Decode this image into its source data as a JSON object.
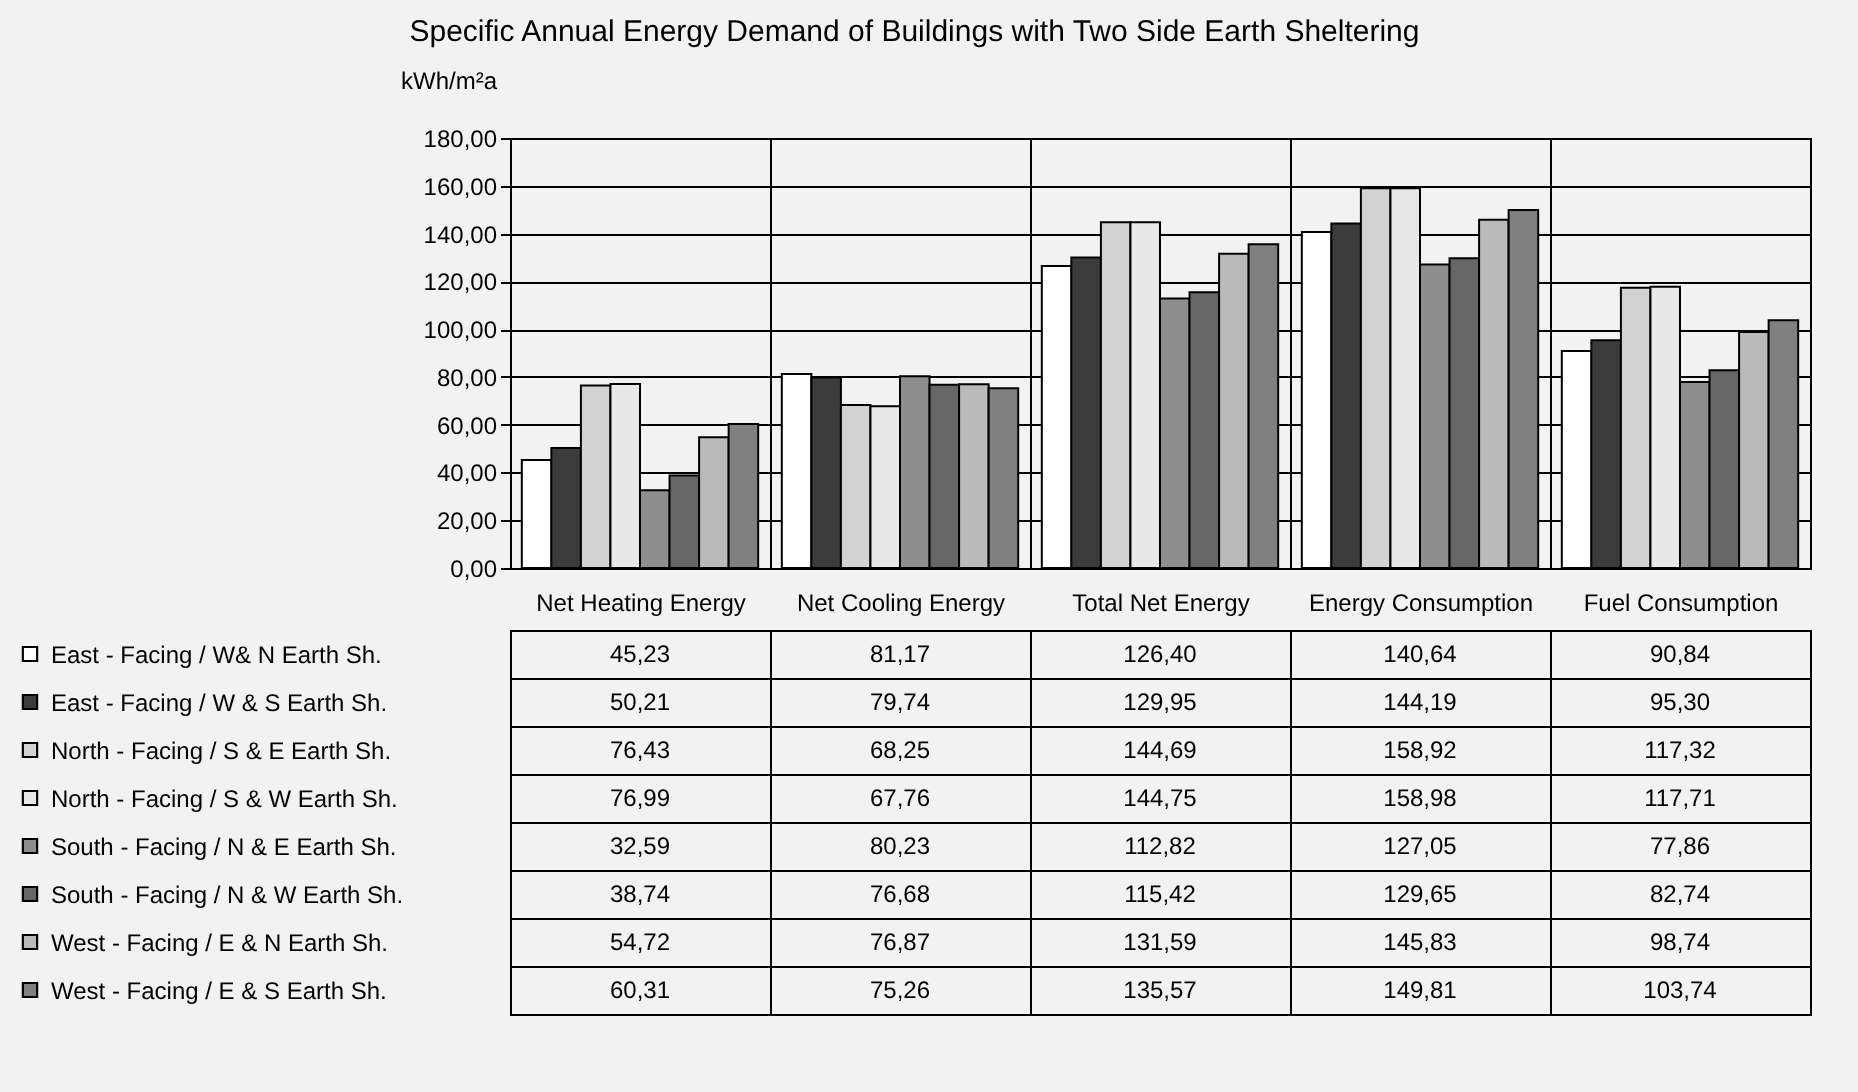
{
  "chart_data": {
    "type": "bar",
    "title": "Specific Annual Energy Demand of Buildings with Two Side Earth Sheltering",
    "ylabel": "kWh/m²a",
    "categories": [
      "Net Heating Energy",
      "Net Cooling Energy",
      "Total Net Energy",
      "Energy Consumption",
      "Fuel Consumption"
    ],
    "series": [
      {
        "name": "East - Facing / W& N Earth Sh.",
        "color": "#ffffff",
        "values": [
          45.23,
          81.17,
          126.4,
          140.64,
          90.84
        ],
        "value_labels": [
          "45,23",
          "81,17",
          "126,40",
          "140,64",
          "90,84"
        ]
      },
      {
        "name": "East - Facing / W & S Earth Sh.",
        "color": "#3c3c3c",
        "values": [
          50.21,
          79.74,
          129.95,
          144.19,
          95.3
        ],
        "value_labels": [
          "50,21",
          "79,74",
          "129,95",
          "144,19",
          "95,30"
        ]
      },
      {
        "name": "North - Facing / S & E Earth Sh.",
        "color": "#d2d2d2",
        "values": [
          76.43,
          68.25,
          144.69,
          158.92,
          117.32
        ],
        "value_labels": [
          "76,43",
          "68,25",
          "144,69",
          "158,92",
          "117,32"
        ]
      },
      {
        "name": "North - Facing / S & W Earth Sh.",
        "color": "#e8e8e8",
        "values": [
          76.99,
          67.76,
          144.75,
          158.98,
          117.71
        ],
        "value_labels": [
          "76,99",
          "67,76",
          "144,75",
          "158,98",
          "117,71"
        ]
      },
      {
        "name": "South - Facing / N & E Earth Sh.",
        "color": "#8e8e8e",
        "values": [
          32.59,
          80.23,
          112.82,
          127.05,
          77.86
        ],
        "value_labels": [
          "32,59",
          "80,23",
          "112,82",
          "127,05",
          "77,86"
        ]
      },
      {
        "name": "South - Facing / N & W Earth Sh.",
        "color": "#666666",
        "values": [
          38.74,
          76.68,
          115.42,
          129.65,
          82.74
        ],
        "value_labels": [
          "38,74",
          "76,68",
          "115,42",
          "129,65",
          "82,74"
        ]
      },
      {
        "name": "West - Facing / E & N Earth Sh.",
        "color": "#bababa",
        "values": [
          54.72,
          76.87,
          131.59,
          145.83,
          98.74
        ],
        "value_labels": [
          "54,72",
          "76,87",
          "131,59",
          "145,83",
          "98,74"
        ]
      },
      {
        "name": "West - Facing / E & S Earth Sh.",
        "color": "#808080",
        "values": [
          60.31,
          75.26,
          135.57,
          149.81,
          103.74
        ],
        "value_labels": [
          "60,31",
          "75,26",
          "135,57",
          "149,81",
          "103,74"
        ]
      }
    ],
    "ylim": [
      0,
      180
    ],
    "yticks": [
      {
        "value": 0,
        "label": "0,00"
      },
      {
        "value": 20,
        "label": "20,00"
      },
      {
        "value": 40,
        "label": "40,00"
      },
      {
        "value": 60,
        "label": "60,00"
      },
      {
        "value": 80,
        "label": "80,00"
      },
      {
        "value": 100,
        "label": "100,00"
      },
      {
        "value": 120,
        "label": "120,00"
      },
      {
        "value": 140,
        "label": "140,00"
      },
      {
        "value": 160,
        "label": "160,00"
      },
      {
        "value": 180,
        "label": "180,00"
      }
    ],
    "grid": "y",
    "legend": "bottom left"
  }
}
